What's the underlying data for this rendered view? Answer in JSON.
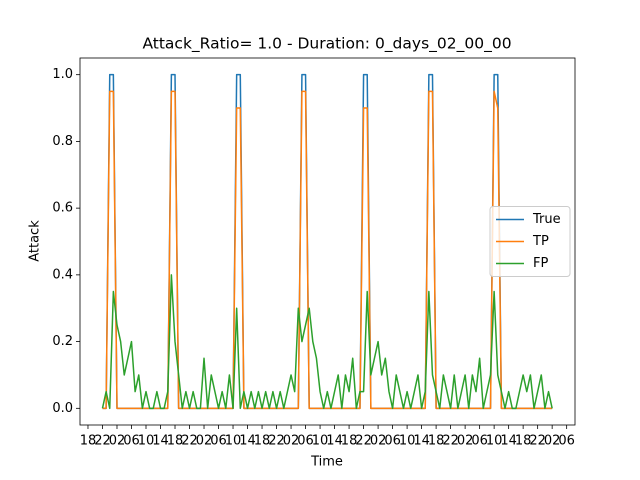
{
  "chart_data": {
    "type": "line",
    "title": "Attack_Ratio= 1.0 - Duration: 0_days_02_00_00",
    "x_label": "Time",
    "y_label": "Attack",
    "x": [
      4,
      5,
      6,
      7,
      8,
      9,
      10,
      11,
      12,
      13,
      14,
      15,
      16,
      17,
      18,
      19,
      20,
      21,
      22,
      23,
      24,
      25,
      26,
      27,
      28,
      29,
      30,
      31,
      32,
      33,
      34,
      35,
      36,
      37,
      38,
      39,
      40,
      41,
      42,
      43,
      44,
      45,
      46,
      47,
      48,
      49,
      50,
      51,
      52,
      53,
      54,
      55,
      56,
      57,
      58,
      59,
      60,
      61,
      62,
      63,
      64,
      65,
      66,
      67,
      68,
      69,
      70,
      71,
      72,
      73,
      74,
      75,
      76,
      77,
      78,
      79,
      80,
      81,
      82,
      83,
      84,
      85,
      86,
      87,
      88,
      89,
      90,
      91,
      92,
      93,
      94,
      95,
      96,
      97,
      98,
      99,
      100,
      101,
      102,
      103,
      104,
      105,
      106,
      107,
      108,
      109,
      110,
      111,
      112,
      113,
      114,
      115,
      116,
      117,
      118,
      119,
      120,
      121,
      122,
      123,
      124,
      125,
      126,
      127,
      128
    ],
    "series": [
      {
        "name": "True",
        "color": "#1f77b4",
        "values": [
          0,
          0,
          1,
          1,
          0,
          0,
          0,
          0,
          0,
          0,
          0,
          0,
          0,
          0,
          0,
          0,
          0,
          0,
          0,
          1,
          1,
          0,
          0,
          0,
          0,
          0,
          0,
          0,
          0,
          0,
          0,
          0,
          0,
          0,
          0,
          0,
          0,
          1,
          1,
          0,
          0,
          0,
          0,
          0,
          0,
          0,
          0,
          0,
          0,
          0,
          0,
          0,
          0,
          0,
          0,
          1,
          1,
          0,
          0,
          0,
          0,
          0,
          0,
          0,
          0,
          0,
          0,
          0,
          0,
          0,
          0,
          0,
          1,
          1,
          0,
          0,
          0,
          0,
          0,
          0,
          0,
          0,
          0,
          0,
          0,
          0,
          0,
          0,
          0,
          0,
          1,
          1,
          0,
          0,
          0,
          0,
          0,
          0,
          0,
          0,
          0,
          0,
          0,
          0,
          0,
          0,
          0,
          0,
          1,
          1,
          0,
          0,
          0,
          0,
          0,
          0,
          0,
          0,
          0,
          0,
          0,
          0,
          0,
          0,
          0
        ]
      },
      {
        "name": "TP",
        "color": "#ff7f0e",
        "values": [
          0,
          0,
          0.95,
          0.95,
          0,
          0,
          0,
          0,
          0,
          0,
          0,
          0,
          0,
          0,
          0,
          0,
          0,
          0,
          0,
          0.95,
          0.95,
          0,
          0,
          0,
          0,
          0,
          0,
          0,
          0,
          0,
          0,
          0,
          0,
          0,
          0,
          0,
          0,
          0.9,
          0.9,
          0,
          0,
          0,
          0,
          0,
          0,
          0,
          0,
          0,
          0,
          0,
          0,
          0,
          0,
          0,
          0,
          0.95,
          0.95,
          0,
          0,
          0,
          0,
          0,
          0,
          0,
          0,
          0,
          0,
          0,
          0,
          0,
          0,
          0,
          0.9,
          0.9,
          0,
          0,
          0,
          0,
          0,
          0,
          0,
          0,
          0,
          0,
          0,
          0,
          0,
          0,
          0,
          0,
          0.95,
          0.95,
          0,
          0,
          0,
          0,
          0,
          0,
          0,
          0,
          0,
          0,
          0,
          0,
          0,
          0,
          0,
          0,
          0.95,
          0.9,
          0,
          0,
          0,
          0,
          0,
          0,
          0,
          0,
          0,
          0,
          0,
          0,
          0,
          0,
          0
        ]
      },
      {
        "name": "FP",
        "color": "#2ca02c",
        "values": [
          0,
          0.05,
          0,
          0.35,
          0.25,
          0.2,
          0.1,
          0.15,
          0.2,
          0.05,
          0.1,
          0,
          0.05,
          0,
          0,
          0.05,
          0,
          0,
          0.05,
          0.4,
          0.2,
          0.1,
          0,
          0.05,
          0,
          0.05,
          0,
          0,
          0.15,
          0,
          0.1,
          0.05,
          0,
          0.05,
          0,
          0.1,
          0,
          0.3,
          0,
          0.05,
          0,
          0.05,
          0,
          0.05,
          0,
          0.05,
          0,
          0.05,
          0,
          0.05,
          0,
          0.05,
          0.1,
          0.05,
          0.3,
          0.2,
          0.25,
          0.3,
          0.2,
          0.15,
          0.05,
          0,
          0.05,
          0,
          0.05,
          0.1,
          0,
          0.1,
          0.05,
          0.15,
          0,
          0.05,
          0.05,
          0.35,
          0.1,
          0.15,
          0.2,
          0.1,
          0.15,
          0.05,
          0,
          0.1,
          0.05,
          0,
          0.05,
          0,
          0.05,
          0.1,
          0,
          0.05,
          0.35,
          0.1,
          0.05,
          0,
          0.1,
          0.05,
          0,
          0.1,
          0,
          0.05,
          0.1,
          0,
          0.1,
          0.05,
          0.15,
          0,
          0.05,
          0.1,
          0.35,
          0.1,
          0.05,
          0,
          0.05,
          0,
          0,
          0.05,
          0.1,
          0.05,
          0.1,
          0,
          0.05,
          0.1,
          0,
          0.05,
          0
        ]
      }
    ],
    "xlim": [
      -2.2,
      134.3
    ],
    "xticks": [
      {
        "value": 0,
        "label": "18"
      },
      {
        "value": 4,
        "label": "22"
      },
      {
        "value": 8,
        "label": "02"
      },
      {
        "value": 12,
        "label": "06"
      },
      {
        "value": 16,
        "label": "10"
      },
      {
        "value": 20,
        "label": "14"
      },
      {
        "value": 24,
        "label": "18"
      },
      {
        "value": 28,
        "label": "22"
      },
      {
        "value": 32,
        "label": "02"
      },
      {
        "value": 36,
        "label": "06"
      },
      {
        "value": 40,
        "label": "10"
      },
      {
        "value": 44,
        "label": "14"
      },
      {
        "value": 48,
        "label": "18"
      },
      {
        "value": 52,
        "label": "22"
      },
      {
        "value": 56,
        "label": "02"
      },
      {
        "value": 60,
        "label": "06"
      },
      {
        "value": 64,
        "label": "10"
      },
      {
        "value": 68,
        "label": "14"
      },
      {
        "value": 72,
        "label": "18"
      },
      {
        "value": 76,
        "label": "22"
      },
      {
        "value": 80,
        "label": "02"
      },
      {
        "value": 84,
        "label": "06"
      },
      {
        "value": 88,
        "label": "10"
      },
      {
        "value": 92,
        "label": "14"
      },
      {
        "value": 96,
        "label": "18"
      },
      {
        "value": 100,
        "label": "22"
      },
      {
        "value": 104,
        "label": "02"
      },
      {
        "value": 108,
        "label": "06"
      },
      {
        "value": 112,
        "label": "10"
      },
      {
        "value": 116,
        "label": "14"
      },
      {
        "value": 120,
        "label": "18"
      },
      {
        "value": 124,
        "label": "22"
      },
      {
        "value": 128,
        "label": "02"
      },
      {
        "value": 132,
        "label": "06"
      }
    ],
    "ylim": [
      -0.05,
      1.05
    ],
    "yticks": [
      {
        "value": 0,
        "label": "0.0"
      },
      0.2,
      0.4,
      0.6,
      0.8,
      {
        "value": 1,
        "label": "1.0"
      }
    ],
    "legend": "center right"
  }
}
